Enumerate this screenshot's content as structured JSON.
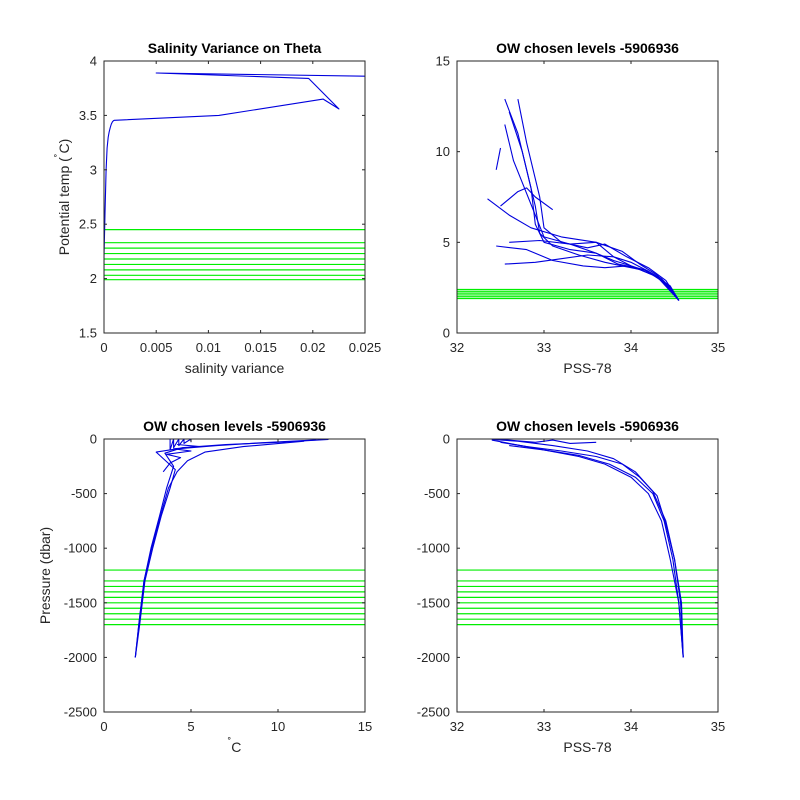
{
  "colors": {
    "profile": "#0000dd",
    "levels": "#00ee00",
    "axis": "#262626"
  },
  "chart_data": [
    {
      "type": "line",
      "title": "Salinity Variance on Theta",
      "xlabel": "salinity variance",
      "ylabel": "Potential temp (",
      "ylabel_deg": "˚",
      "ylabel_tail": "C)",
      "xlim": [
        0,
        0.025
      ],
      "ylim": [
        1.5,
        4
      ],
      "xticks": [
        0,
        0.005,
        0.01,
        0.015,
        0.02,
        0.025
      ],
      "xtick_labels": [
        "0",
        "0.005",
        "0.01",
        "0.015",
        "0.02",
        "0.025"
      ],
      "yticks": [
        1.5,
        2,
        2.5,
        3,
        3.5,
        4
      ],
      "ytick_labels": [
        "1.5",
        "2",
        "2.5",
        "3",
        "3.5",
        "4"
      ],
      "series": [
        {
          "color": "#0000dd",
          "x": [
            0,
            0,
            0.0001,
            0.0002,
            0.0003,
            0.0004,
            0.0005,
            0.0006,
            0.0007,
            0.0008,
            0.0009,
            0.001,
            0.011,
            0.021,
            0.0225,
            0.0196,
            0.005,
            0.025
          ],
          "y": [
            1.8,
            2.2,
            2.6,
            3.0,
            3.2,
            3.3,
            3.35,
            3.39,
            3.42,
            3.44,
            3.45,
            3.455,
            3.5,
            3.65,
            3.56,
            3.84,
            3.89,
            3.86
          ]
        }
      ],
      "hlines": [
        1.99,
        2.03,
        2.08,
        2.13,
        2.18,
        2.23,
        2.28,
        2.33,
        2.45
      ]
    },
    {
      "type": "line",
      "title": "OW chosen levels -5906936",
      "xlabel": "PSS-78",
      "ylabel": "",
      "xlim": [
        32,
        35
      ],
      "ylim": [
        0,
        15
      ],
      "xticks": [
        32,
        33,
        34,
        35
      ],
      "xtick_labels": [
        "32",
        "33",
        "34",
        "35"
      ],
      "yticks": [
        0,
        5,
        10,
        15
      ],
      "ytick_labels": [
        "0",
        "5",
        "10",
        "15"
      ],
      "series": [
        {
          "name": "",
          "color": "#0000dd",
          "x": [
            32.55,
            32.7,
            32.85,
            32.9,
            33.0,
            33.3,
            33.6,
            33.8,
            34.0,
            34.2,
            34.35,
            34.45,
            34.55
          ],
          "y": [
            12.9,
            11.0,
            8.0,
            6.0,
            5.0,
            4.6,
            4.4,
            4.0,
            3.7,
            3.4,
            3.0,
            2.5,
            1.8
          ]
        },
        {
          "name": "",
          "color": "#0000dd",
          "x": [
            32.6,
            32.75,
            32.9,
            32.95,
            33.1,
            33.4,
            33.7,
            33.9,
            34.1,
            34.3,
            34.45,
            34.55
          ],
          "y": [
            12.2,
            10.0,
            7.0,
            5.5,
            4.8,
            4.3,
            3.9,
            3.7,
            3.5,
            3.1,
            2.5,
            1.8
          ]
        },
        {
          "name": "",
          "color": "#0000dd",
          "x": [
            32.7,
            32.8,
            32.95,
            33.0,
            33.2,
            33.5,
            33.7,
            33.95,
            34.2,
            34.4,
            34.55
          ],
          "y": [
            12.9,
            10.5,
            7.5,
            5.8,
            5.0,
            4.7,
            4.9,
            4.2,
            3.6,
            2.9,
            1.8
          ]
        },
        {
          "name": "",
          "color": "#0000dd",
          "x": [
            32.55,
            32.65,
            32.9,
            33.0,
            33.3,
            33.6,
            33.8,
            34.0,
            34.25,
            34.45,
            34.55
          ],
          "y": [
            11.5,
            9.5,
            6.5,
            5.3,
            4.9,
            5.0,
            4.2,
            3.7,
            3.2,
            2.6,
            1.8
          ]
        },
        {
          "name": "",
          "color": "#0000dd",
          "x": [
            32.45,
            32.5
          ],
          "y": [
            9.0,
            10.2
          ]
        },
        {
          "name": "",
          "color": "#0000dd",
          "x": [
            32.35,
            32.6,
            32.85,
            33.2,
            33.6,
            33.9,
            34.1,
            34.3,
            34.45,
            34.55
          ],
          "y": [
            7.4,
            6.5,
            5.8,
            5.3,
            5.0,
            4.5,
            3.8,
            3.2,
            2.5,
            1.8
          ]
        },
        {
          "name": "",
          "color": "#0000dd",
          "x": [
            32.55,
            32.9,
            33.2,
            33.5,
            33.8,
            34.0,
            34.2,
            34.4,
            34.55
          ],
          "y": [
            3.8,
            3.9,
            4.1,
            4.3,
            4.2,
            3.9,
            3.4,
            2.7,
            1.8
          ]
        },
        {
          "name": "",
          "color": "#0000dd",
          "x": [
            32.45,
            32.8,
            33.1,
            33.45,
            33.7,
            33.95,
            34.15,
            34.35,
            34.55
          ],
          "y": [
            4.8,
            4.6,
            4.0,
            3.7,
            3.6,
            3.7,
            3.5,
            2.9,
            1.8
          ]
        },
        {
          "name": "",
          "color": "#0000dd",
          "x": [
            32.6,
            32.95,
            33.3,
            33.6,
            33.85,
            34.05,
            34.3,
            34.55
          ],
          "y": [
            5.0,
            5.1,
            4.9,
            4.4,
            3.8,
            3.6,
            3.1,
            1.8
          ]
        },
        {
          "name": "",
          "color": "#0000dd",
          "x": [
            32.5,
            32.7,
            32.8,
            32.9,
            33.1
          ],
          "y": [
            7.0,
            7.8,
            8.0,
            7.5,
            6.8
          ]
        }
      ],
      "hlines": [
        1.9,
        2.0,
        2.1,
        2.2,
        2.3,
        2.4
      ]
    },
    {
      "type": "line",
      "title": "OW chosen levels -5906936",
      "xlabel": "C",
      "xlabel_deg": "˚",
      "ylabel": "Pressure (dbar)",
      "xlim": [
        0,
        15
      ],
      "ylim": [
        -2500,
        0
      ],
      "xticks": [
        0,
        5,
        10,
        15
      ],
      "xtick_labels": [
        "0",
        "5",
        "10",
        "15"
      ],
      "yticks": [
        -2500,
        -2000,
        -1500,
        -1000,
        -500,
        0
      ],
      "ytick_labels": [
        "-2500",
        "-2000",
        "-1500",
        "-1000",
        "-500",
        "0"
      ],
      "series": [
        {
          "name": "",
          "color": "#0000dd",
          "x": [
            1.8,
            2.0,
            2.3,
            2.7,
            3.2,
            3.6,
            4.0,
            3.5,
            4.5,
            7.0,
            10.0,
            12.9
          ],
          "y": [
            -2000,
            -1700,
            -1300,
            -1000,
            -700,
            -450,
            -250,
            -130,
            -80,
            -50,
            -30,
            -5
          ]
        },
        {
          "name": "",
          "color": "#0000dd",
          "x": [
            1.8,
            2.05,
            2.35,
            2.8,
            3.3,
            3.8,
            4.1,
            3.0,
            4.2,
            6.5,
            9.0,
            12.2
          ],
          "y": [
            -2000,
            -1700,
            -1300,
            -1000,
            -700,
            -450,
            -280,
            -120,
            -90,
            -60,
            -35,
            -8
          ]
        },
        {
          "name": "",
          "color": "#0000dd",
          "x": [
            1.8,
            2.0,
            2.3,
            2.75,
            3.25,
            3.7,
            4.2,
            4.8,
            5.8,
            8.0,
            11.5
          ],
          "y": [
            -2000,
            -1700,
            -1300,
            -1000,
            -700,
            -450,
            -300,
            -200,
            -120,
            -70,
            -20
          ]
        },
        {
          "name": "",
          "color": "#0000dd",
          "x": [
            3.4,
            3.8,
            4.4,
            3.6,
            5.0,
            4.0,
            5.5,
            4.2
          ],
          "y": [
            -300,
            -220,
            -170,
            -140,
            -110,
            -90,
            -70,
            -50
          ]
        },
        {
          "name": "",
          "color": "#0000dd",
          "x": [
            3.8,
            3.8,
            4.0,
            4.0,
            4.3,
            4.3,
            4.6,
            4.6,
            5.0,
            5.0
          ],
          "y": [
            0,
            -100,
            0,
            -80,
            0,
            -60,
            0,
            -40,
            0,
            -30
          ]
        }
      ],
      "hlines": [
        -1200,
        -1300,
        -1350,
        -1400,
        -1450,
        -1500,
        -1550,
        -1600,
        -1650,
        -1700
      ]
    },
    {
      "type": "line",
      "title": "OW chosen levels -5906936",
      "xlabel": "PSS-78",
      "ylabel": "",
      "xlim": [
        32,
        35
      ],
      "ylim": [
        -2500,
        0
      ],
      "xticks": [
        32,
        33,
        34,
        35
      ],
      "xtick_labels": [
        "32",
        "33",
        "34",
        "35"
      ],
      "yticks": [
        -2500,
        -2000,
        -1500,
        -1000,
        -500,
        0
      ],
      "ytick_labels": [
        "-2500",
        "-2000",
        "-1500",
        "-1000",
        "-500",
        "0"
      ],
      "series": [
        {
          "name": "",
          "color": "#0000dd",
          "x": [
            32.4,
            32.6,
            33.0,
            33.4,
            33.7,
            34.0,
            34.2,
            34.35,
            34.45,
            34.55,
            34.6
          ],
          "y": [
            -10,
            -40,
            -100,
            -160,
            -230,
            -350,
            -500,
            -750,
            -1100,
            -1500,
            -2000
          ]
        },
        {
          "name": "",
          "color": "#0000dd",
          "x": [
            32.5,
            32.8,
            33.2,
            33.6,
            33.9,
            34.1,
            34.3,
            34.4,
            34.5,
            34.57,
            34.6
          ],
          "y": [
            -30,
            -70,
            -110,
            -160,
            -230,
            -350,
            -520,
            -780,
            -1100,
            -1500,
            -2000
          ]
        },
        {
          "name": "",
          "color": "#0000dd",
          "x": [
            32.6,
            33.0,
            33.4,
            33.75,
            34.05,
            34.25,
            34.38,
            34.48,
            34.55,
            34.6
          ],
          "y": [
            -60,
            -100,
            -150,
            -230,
            -350,
            -500,
            -750,
            -1100,
            -1500,
            -2000
          ]
        },
        {
          "name": "",
          "color": "#0000dd",
          "x": [
            32.4,
            32.7,
            33.1,
            33.5,
            33.8,
            34.05,
            34.25,
            34.4,
            34.5,
            34.58,
            34.6
          ],
          "y": [
            -5,
            -20,
            -60,
            -110,
            -180,
            -300,
            -480,
            -750,
            -1100,
            -1500,
            -2000
          ]
        },
        {
          "name": "",
          "color": "#0000dd",
          "x": [
            32.5,
            32.9,
            33.1,
            33.3,
            33.6
          ],
          "y": [
            -5,
            -30,
            -10,
            -40,
            -30
          ]
        }
      ],
      "hlines": [
        -1200,
        -1300,
        -1350,
        -1400,
        -1450,
        -1500,
        -1550,
        -1600,
        -1650,
        -1700
      ]
    }
  ]
}
